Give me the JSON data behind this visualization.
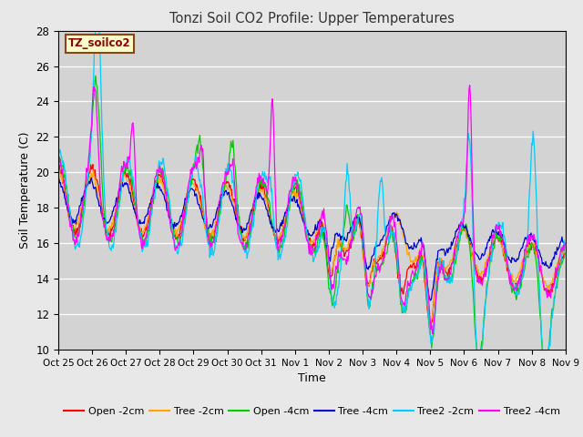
{
  "title": "Tonzi Soil CO2 Profile: Upper Temperatures",
  "xlabel": "Time",
  "ylabel": "Soil Temperature (C)",
  "ylim": [
    10,
    28
  ],
  "xlim": [
    0,
    360
  ],
  "fig_bg": "#e8e8e8",
  "plot_bg": "#d3d3d3",
  "annotation_text": "TZ_soilco2",
  "annotation_bg": "#ffffcc",
  "annotation_border": "#8b4513",
  "annotation_text_color": "#8b0000",
  "tick_labels": [
    "Oct 25",
    "Oct 26",
    "Oct 27",
    "Oct 28",
    "Oct 29",
    "Oct 30",
    "Oct 31",
    "Nov 1",
    "Nov 2",
    "Nov 3",
    "Nov 4",
    "Nov 5",
    "Nov 6",
    "Nov 7",
    "Nov 8",
    "Nov 9"
  ],
  "tick_positions": [
    0,
    24,
    48,
    72,
    96,
    120,
    144,
    168,
    192,
    216,
    240,
    264,
    288,
    312,
    336,
    360
  ],
  "series": [
    {
      "label": "Open -2cm",
      "color": "#ff0000"
    },
    {
      "label": "Tree -2cm",
      "color": "#ffa500"
    },
    {
      "label": "Open -4cm",
      "color": "#00cc00"
    },
    {
      "label": "Tree -4cm",
      "color": "#0000cc"
    },
    {
      "label": "Tree2 -2cm",
      "color": "#00ccff"
    },
    {
      "label": "Tree2 -4cm",
      "color": "#ff00ff"
    }
  ]
}
